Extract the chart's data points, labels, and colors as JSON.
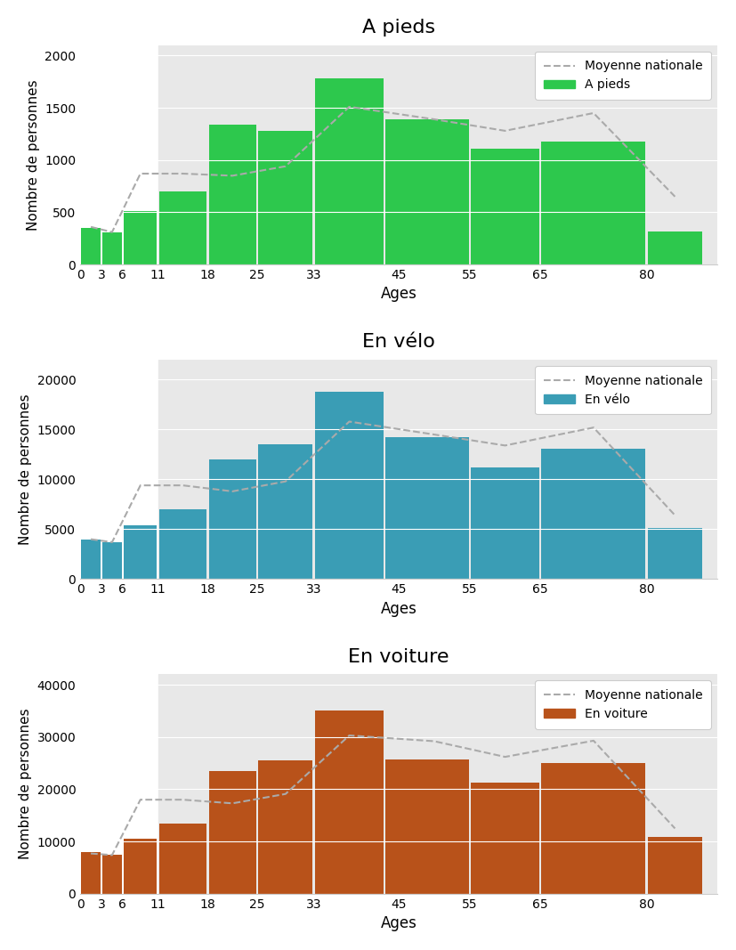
{
  "charts": [
    {
      "title": "A pieds",
      "bar_color": "#2DC84D",
      "legend_label": "A pieds",
      "ylim": [
        0,
        2100
      ],
      "yticks": [
        0,
        500,
        1000,
        1500,
        2000
      ],
      "bar_values": [
        350,
        310,
        510,
        700,
        1340,
        1280,
        1780,
        1390,
        1110,
        1180,
        320
      ],
      "avg_line_x": [
        1.5,
        4.5,
        8.5,
        14.5,
        21.5,
        29.0,
        38.0,
        50.0,
        60.0,
        72.5,
        84.0
      ],
      "avg_line_y": [
        360,
        310,
        870,
        870,
        850,
        940,
        1510,
        1390,
        1280,
        1450,
        650
      ]
    },
    {
      "title": "En vélo",
      "bar_color": "#3A9DB5",
      "legend_label": "En vélo",
      "ylim": [
        0,
        22000
      ],
      "yticks": [
        0,
        5000,
        10000,
        15000,
        20000
      ],
      "bar_values": [
        4000,
        3700,
        5400,
        7000,
        12000,
        13500,
        18800,
        14200,
        11200,
        13100,
        5100
      ],
      "avg_line_x": [
        1.5,
        4.5,
        8.5,
        14.5,
        21.5,
        29.0,
        38.0,
        50.0,
        60.0,
        72.5,
        84.0
      ],
      "avg_line_y": [
        4000,
        3700,
        9400,
        9400,
        8800,
        9800,
        15800,
        14500,
        13400,
        15200,
        6400
      ]
    },
    {
      "title": "En voiture",
      "bar_color": "#B8521A",
      "legend_label": "En voiture",
      "ylim": [
        0,
        42000
      ],
      "yticks": [
        0,
        10000,
        20000,
        30000,
        40000
      ],
      "bar_values": [
        8000,
        7500,
        10500,
        13500,
        23500,
        25500,
        35000,
        25700,
        21200,
        25000,
        10800
      ],
      "avg_line_x": [
        1.5,
        4.5,
        8.5,
        14.5,
        21.5,
        29.0,
        38.0,
        50.0,
        60.0,
        72.5,
        84.0
      ],
      "avg_line_y": [
        7700,
        7400,
        18000,
        18000,
        17300,
        19100,
        30300,
        29200,
        26200,
        29300,
        12500
      ]
    }
  ],
  "bar_edges": [
    0,
    3,
    6,
    11,
    18,
    25,
    33,
    43,
    55,
    65,
    80,
    88
  ],
  "xtick_positions": [
    0,
    3,
    6,
    11,
    18,
    25,
    33,
    45,
    55,
    65,
    80
  ],
  "xtick_labels": [
    "0",
    "3",
    "6",
    "11",
    "18",
    "25",
    "33",
    "45",
    "55",
    "65",
    "80"
  ],
  "gray_start_x": 11,
  "xlim_max": 90,
  "xlabel": "Ages",
  "ylabel": "Nombre de personnes",
  "background_color": "#e8e8e8",
  "outer_background": "#ffffff",
  "avg_line_color": "#aaaaaa",
  "grid_color": "#ffffff"
}
